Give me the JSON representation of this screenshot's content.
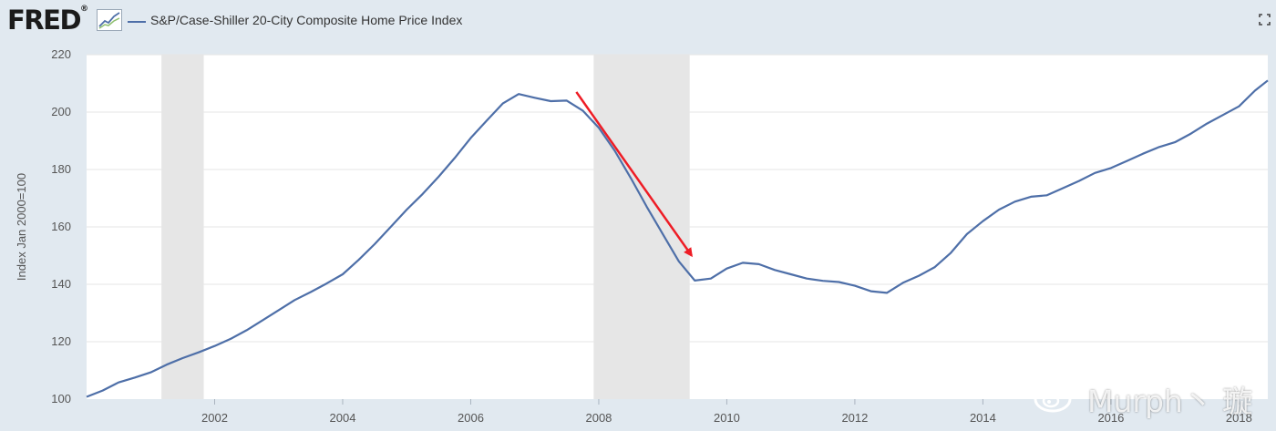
{
  "header": {
    "logo_text": "FRED",
    "logo_mark": "®",
    "legend_label": "S&P/Case-Shiller 20-City Composite Home Price Index",
    "fullscreen_icon": "fullscreen-icon"
  },
  "watermark": {
    "text": "Murph丶 璇",
    "icon": "weibo-icon"
  },
  "colors": {
    "line": "#4e6fa8",
    "recession": "#e6e6e6",
    "arrow": "#ee1c25",
    "background": "#e1e9f0",
    "plot": "#ffffff",
    "grid": "#e6e6e6"
  },
  "chart_data": {
    "type": "line",
    "title": "",
    "xlabel": "",
    "ylabel": "Index Jan 2000=100",
    "xlim": [
      2000.0,
      2018.45
    ],
    "ylim": [
      100,
      220
    ],
    "y_ticks": [
      100,
      120,
      140,
      160,
      180,
      200,
      220
    ],
    "x_ticks": [
      2002,
      2004,
      2006,
      2008,
      2010,
      2012,
      2014,
      2016,
      2018
    ],
    "grid": true,
    "legend_placement": "top-left",
    "recessions": [
      [
        2001.17,
        2001.83
      ],
      [
        2007.92,
        2009.42
      ]
    ],
    "annotations": [
      {
        "type": "arrow",
        "from": [
          2007.65,
          207
        ],
        "to": [
          2009.45,
          150
        ]
      }
    ],
    "series": [
      {
        "name": "S&P/Case-Shiller 20-City Composite Home Price Index",
        "points": [
          [
            2000.0,
            100.8
          ],
          [
            2000.25,
            103.0
          ],
          [
            2000.5,
            105.8
          ],
          [
            2000.75,
            107.5
          ],
          [
            2001.0,
            109.3
          ],
          [
            2001.25,
            112.0
          ],
          [
            2001.5,
            114.3
          ],
          [
            2001.75,
            116.3
          ],
          [
            2002.0,
            118.5
          ],
          [
            2002.25,
            121.0
          ],
          [
            2002.5,
            124.0
          ],
          [
            2002.75,
            127.5
          ],
          [
            2003.0,
            131.0
          ],
          [
            2003.25,
            134.5
          ],
          [
            2003.5,
            137.3
          ],
          [
            2003.75,
            140.3
          ],
          [
            2004.0,
            143.5
          ],
          [
            2004.25,
            148.5
          ],
          [
            2004.5,
            154.0
          ],
          [
            2004.75,
            160.0
          ],
          [
            2005.0,
            166.0
          ],
          [
            2005.25,
            171.5
          ],
          [
            2005.5,
            177.5
          ],
          [
            2005.75,
            184.0
          ],
          [
            2006.0,
            191.0
          ],
          [
            2006.25,
            197.0
          ],
          [
            2006.5,
            203.0
          ],
          [
            2006.75,
            206.3
          ],
          [
            2007.0,
            205.0
          ],
          [
            2007.25,
            203.8
          ],
          [
            2007.5,
            204.0
          ],
          [
            2007.75,
            200.5
          ],
          [
            2008.0,
            194.5
          ],
          [
            2008.25,
            186.5
          ],
          [
            2008.5,
            177.0
          ],
          [
            2008.75,
            167.0
          ],
          [
            2009.0,
            157.5
          ],
          [
            2009.25,
            148.0
          ],
          [
            2009.5,
            141.3
          ],
          [
            2009.75,
            142.0
          ],
          [
            2010.0,
            145.5
          ],
          [
            2010.25,
            147.5
          ],
          [
            2010.5,
            147.0
          ],
          [
            2010.75,
            145.0
          ],
          [
            2011.0,
            143.5
          ],
          [
            2011.25,
            142.0
          ],
          [
            2011.5,
            141.2
          ],
          [
            2011.75,
            140.8
          ],
          [
            2012.0,
            139.5
          ],
          [
            2012.25,
            137.6
          ],
          [
            2012.5,
            137.0
          ],
          [
            2012.75,
            140.5
          ],
          [
            2013.0,
            143.0
          ],
          [
            2013.25,
            146.0
          ],
          [
            2013.5,
            151.0
          ],
          [
            2013.75,
            157.5
          ],
          [
            2014.0,
            162.0
          ],
          [
            2014.25,
            166.0
          ],
          [
            2014.5,
            168.8
          ],
          [
            2014.75,
            170.5
          ],
          [
            2015.0,
            171.0
          ],
          [
            2015.25,
            173.5
          ],
          [
            2015.5,
            176.0
          ],
          [
            2015.75,
            178.8
          ],
          [
            2016.0,
            180.5
          ],
          [
            2016.25,
            183.0
          ],
          [
            2016.5,
            185.5
          ],
          [
            2016.75,
            187.8
          ],
          [
            2017.0,
            189.5
          ],
          [
            2017.25,
            192.5
          ],
          [
            2017.5,
            196.0
          ],
          [
            2017.75,
            199.0
          ],
          [
            2018.0,
            202.0
          ],
          [
            2018.25,
            207.5
          ],
          [
            2018.45,
            211.0
          ]
        ]
      }
    ]
  }
}
